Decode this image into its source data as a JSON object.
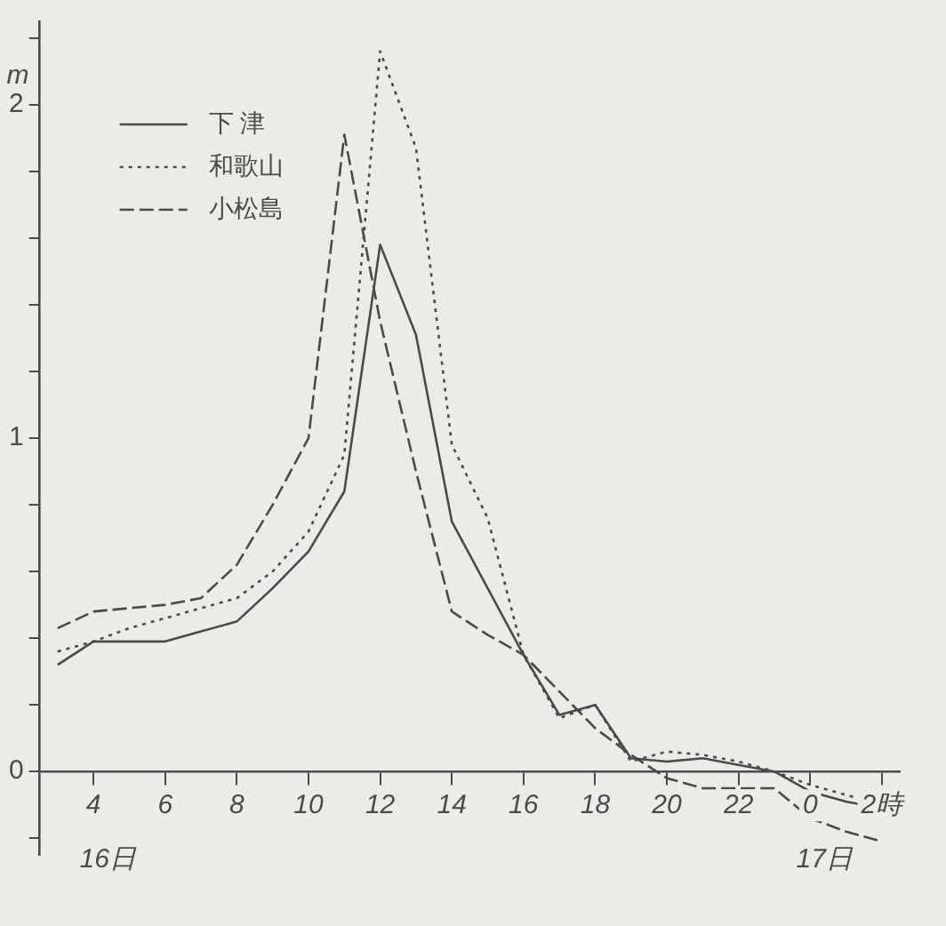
{
  "chart_data": {
    "type": "line",
    "ylabel": "m",
    "legend": "top left",
    "grid": false,
    "marker": "none",
    "categories": [
      null,
      "4",
      null,
      "6",
      null,
      "8",
      null,
      "10",
      null,
      "12",
      null,
      "14",
      null,
      "16",
      null,
      "18",
      null,
      "20",
      null,
      "22",
      null,
      "0",
      null,
      "2時"
    ],
    "ylim": [
      -0.25,
      2.25
    ],
    "yticks": [
      {
        "value": -0.2,
        "label": null
      },
      0,
      {
        "value": 0.2,
        "label": null
      },
      {
        "value": 0.4,
        "label": null
      },
      {
        "value": 0.6,
        "label": null
      },
      {
        "value": 0.8,
        "label": null
      },
      1,
      {
        "value": 1.2,
        "label": null
      },
      {
        "value": 1.4,
        "label": null
      },
      {
        "value": 1.6,
        "label": null
      },
      {
        "value": 1.8,
        "label": null
      },
      2,
      {
        "value": 2.2,
        "label": null
      }
    ],
    "annotations": [
      "16日",
      "17日"
    ],
    "series": [
      {
        "name": "下 津",
        "color": "#4a4a4a",
        "line_style": "solid",
        "values": [
          0.32,
          0.39,
          0.39,
          0.39,
          0.42,
          0.45,
          0.55,
          0.66,
          0.84,
          1.58,
          1.31,
          0.75,
          0.55,
          0.35,
          0.17,
          0.2,
          0.04,
          0.03,
          0.04,
          0.02,
          0,
          -0.06,
          -0.09,
          -0.11
        ]
      },
      {
        "name": "和歌山",
        "color": "#4a4a4a",
        "line_style": "dotted",
        "values": [
          0.36,
          0.39,
          0.43,
          0.46,
          0.49,
          0.52,
          0.6,
          0.72,
          0.95,
          2.16,
          1.87,
          0.98,
          0.76,
          0.35,
          0.16,
          0.2,
          0.03,
          0.06,
          0.05,
          0.03,
          0,
          -0.04,
          -0.07,
          -0.1
        ]
      },
      {
        "name": "小松島",
        "color": "#4a4a4a",
        "line_style": "dashed",
        "values": [
          0.43,
          0.48,
          0.49,
          0.5,
          0.52,
          0.62,
          0.8,
          1.0,
          1.91,
          1.35,
          0.9,
          0.48,
          0.41,
          0.35,
          0.24,
          0.13,
          0.05,
          -0.02,
          -0.05,
          -0.05,
          -0.05,
          -0.14,
          -0.18,
          -0.21
        ]
      }
    ]
  }
}
